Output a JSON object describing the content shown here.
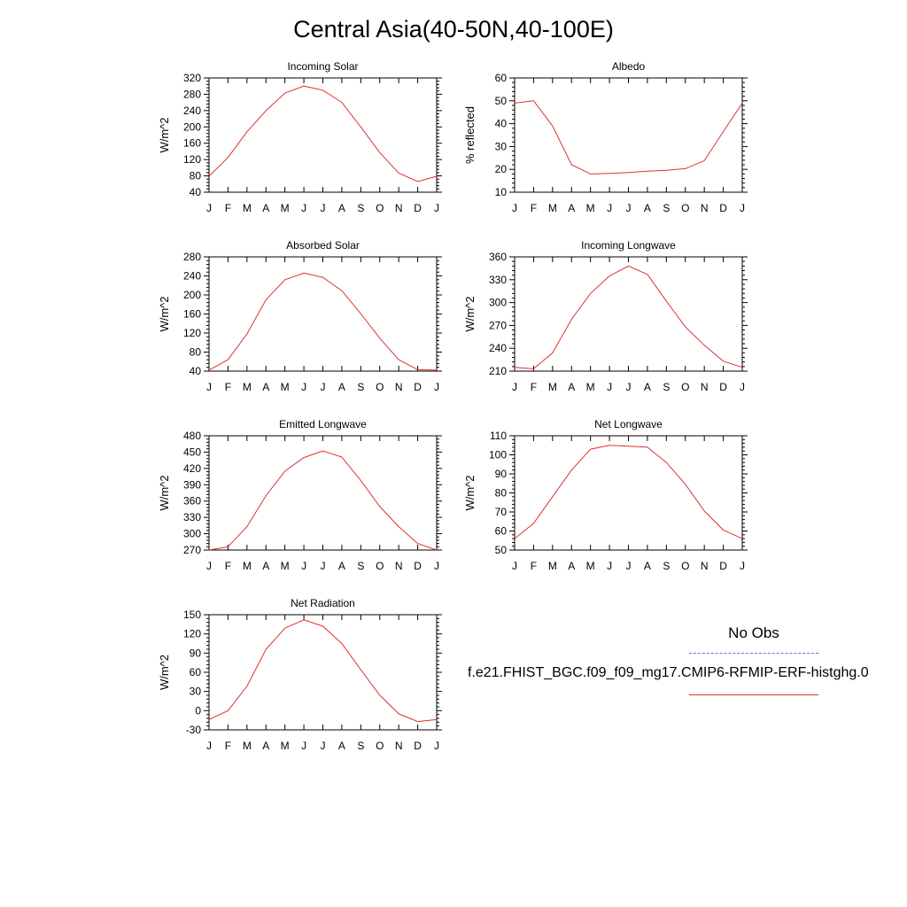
{
  "title": "Central Asia(40-50N,40-100E)",
  "legend": {
    "obs_label": "No Obs",
    "case_label": "f.e21.FHIST_BGC.f09_f09_mg17.CMIP6-RFMIP-ERF-histghg.0",
    "colors": {
      "obs": "#6a6ae0",
      "case": "#e03030"
    }
  },
  "chart_data": [
    {
      "type": "line",
      "title": "Incoming Solar",
      "ylabel": "W/m^2",
      "categories": [
        "J",
        "F",
        "M",
        "A",
        "M",
        "J",
        "J",
        "A",
        "S",
        "O",
        "N",
        "D",
        "J"
      ],
      "ylim": [
        40,
        320
      ],
      "yticks": [
        40,
        80,
        120,
        160,
        200,
        240,
        280,
        320
      ],
      "series": [
        {
          "values": [
            79,
            125,
            188,
            240,
            283,
            300,
            290,
            260,
            200,
            137,
            87,
            66,
            79
          ]
        }
      ]
    },
    {
      "type": "line",
      "title": "Albedo",
      "ylabel": "% reflected",
      "categories": [
        "J",
        "F",
        "M",
        "A",
        "M",
        "J",
        "J",
        "A",
        "S",
        "O",
        "N",
        "D",
        "J"
      ],
      "ylim": [
        10,
        60
      ],
      "yticks": [
        10,
        20,
        30,
        40,
        50,
        60
      ],
      "series": [
        {
          "values": [
            49,
            50,
            39,
            22,
            18,
            18.2,
            18.6,
            19.2,
            19.6,
            20.3,
            23.8,
            36.5,
            49
          ]
        }
      ]
    },
    {
      "type": "line",
      "title": "Absorbed Solar",
      "ylabel": "W/m^2",
      "categories": [
        "J",
        "F",
        "M",
        "A",
        "M",
        "J",
        "J",
        "A",
        "S",
        "O",
        "N",
        "D",
        "J"
      ],
      "ylim": [
        40,
        280
      ],
      "yticks": [
        40,
        80,
        120,
        160,
        200,
        240,
        280
      ],
      "series": [
        {
          "values": [
            42,
            64,
            118,
            190,
            232,
            246,
            237,
            209,
            161,
            109,
            64,
            43,
            42
          ]
        }
      ]
    },
    {
      "type": "line",
      "title": "Incoming Longwave",
      "ylabel": "W/m^2",
      "categories": [
        "J",
        "F",
        "M",
        "A",
        "M",
        "J",
        "J",
        "A",
        "S",
        "O",
        "N",
        "D",
        "J"
      ],
      "ylim": [
        210,
        360
      ],
      "yticks": [
        210,
        240,
        270,
        300,
        330,
        360
      ],
      "series": [
        {
          "values": [
            215,
            213,
            234,
            278,
            312,
            335,
            348,
            337,
            302,
            268,
            244,
            223,
            215
          ]
        }
      ]
    },
    {
      "type": "line",
      "title": "Emitted Longwave",
      "ylabel": "W/m^2",
      "categories": [
        "J",
        "F",
        "M",
        "A",
        "M",
        "J",
        "J",
        "A",
        "S",
        "O",
        "N",
        "D",
        "J"
      ],
      "ylim": [
        270,
        480
      ],
      "yticks": [
        270,
        300,
        330,
        360,
        390,
        420,
        450,
        480
      ],
      "series": [
        {
          "values": [
            270,
            276,
            313,
            370,
            415,
            440,
            452,
            441,
            398,
            350,
            313,
            282,
            270
          ]
        }
      ]
    },
    {
      "type": "line",
      "title": "Net Longwave",
      "ylabel": "W/m^2",
      "categories": [
        "J",
        "F",
        "M",
        "A",
        "M",
        "J",
        "J",
        "A",
        "S",
        "O",
        "N",
        "D",
        "J"
      ],
      "ylim": [
        50,
        110
      ],
      "yticks": [
        50,
        60,
        70,
        80,
        90,
        100,
        110
      ],
      "series": [
        {
          "values": [
            56,
            64,
            78,
            92,
            103,
            105,
            104.5,
            104,
            96,
            84.5,
            70.5,
            60.5,
            56
          ]
        }
      ]
    },
    {
      "type": "line",
      "title": "Net Radiation",
      "ylabel": "W/m^2",
      "categories": [
        "J",
        "F",
        "M",
        "A",
        "M",
        "J",
        "J",
        "A",
        "S",
        "O",
        "N",
        "D",
        "J"
      ],
      "ylim": [
        -30,
        150
      ],
      "yticks": [
        -30,
        0,
        30,
        60,
        90,
        120,
        150
      ],
      "series": [
        {
          "values": [
            -14,
            0,
            38,
            96,
            129,
            142,
            132,
            105,
            64,
            24,
            -5,
            -17,
            -14
          ]
        }
      ]
    }
  ]
}
